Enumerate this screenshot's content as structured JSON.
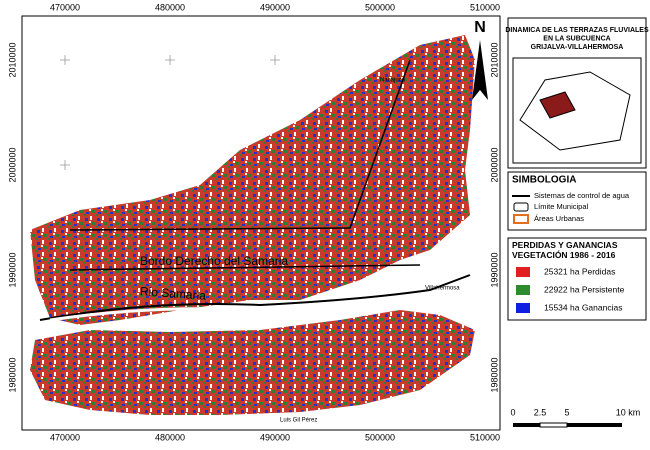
{
  "map": {
    "x_labels": [
      "470000",
      "480000",
      "490000",
      "500000",
      "510000"
    ],
    "y_labels": [
      "2010000",
      "2000000",
      "1990000",
      "1980000"
    ],
    "north": "N",
    "places": [
      "Nacajuca",
      "Villahermosa",
      "Luis Gil Pérez",
      "Bordo Derecho del Samaria",
      "Rio Samaria"
    ]
  },
  "panel": {
    "title": "DINAMICA DE LAS TERRAZAS FLUVIALES EN LA SUBCUENCA GRIJALVA-VILLAHERMOSA",
    "symbology": {
      "title": "SIMBOLOGIA",
      "items": [
        "Sistemas de control de agua",
        "Límite Municipal",
        "Áreas Urbanas"
      ]
    },
    "vegetation": {
      "title": "PERDIDAS Y GANANCIAS VEGETACIÓN 1986 - 2016",
      "items": [
        "25321 ha Perdidas",
        "22922 ha Persistente",
        "15534 ha Ganancias"
      ]
    },
    "scale": [
      "0",
      "2.5",
      "5",
      "10 km"
    ]
  }
}
